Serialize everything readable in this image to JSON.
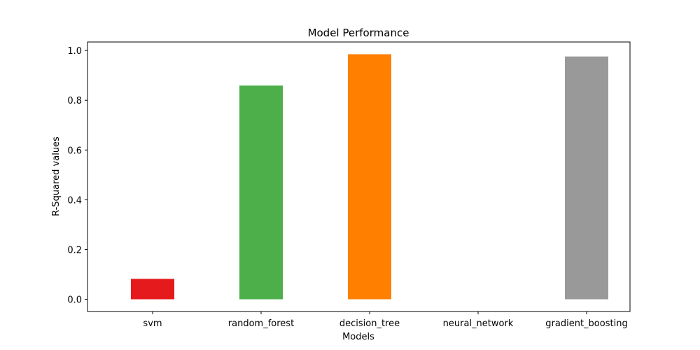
{
  "chart_data": {
    "type": "bar",
    "title": "Model Performance",
    "xlabel": "Models",
    "ylabel": "R-Squared values",
    "categories": [
      "svm",
      "random_forest",
      "decision_tree",
      "neural_network",
      "gradient_boosting"
    ],
    "values": [
      0.082,
      0.859,
      0.985,
      0.0,
      0.976
    ],
    "colors": [
      "#e41a1c",
      "#4daf4a",
      "#ff7f00",
      "#984ea3",
      "#999999"
    ],
    "ylim": [
      -0.0492,
      1.0342
    ],
    "yticks": [
      0.0,
      0.2,
      0.4,
      0.6,
      0.8,
      1.0
    ],
    "ytick_labels": [
      "0.0",
      "0.2",
      "0.4",
      "0.6",
      "0.8",
      "1.0"
    ],
    "grid": false,
    "legend": false
  }
}
